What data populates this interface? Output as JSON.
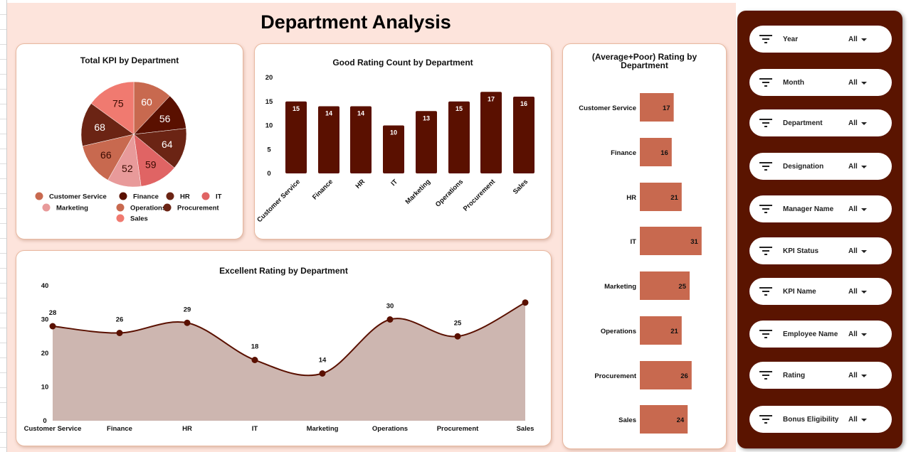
{
  "title": "Department Analysis",
  "colors": {
    "dark": "#5a1000",
    "sidebar": "#5a1400",
    "hbar": "#c8694f",
    "area": "#cdb6b0",
    "line": "#5a1000"
  },
  "filters": [
    {
      "label": "Year",
      "value": "All"
    },
    {
      "label": "Month",
      "value": "All"
    },
    {
      "label": "Department",
      "value": "All"
    },
    {
      "label": "Designation",
      "value": "All"
    },
    {
      "label": "Manager Name",
      "value": "All"
    },
    {
      "label": "KPI Status",
      "value": "All"
    },
    {
      "label": "KPI Name",
      "value": "All"
    },
    {
      "label": "Employee Name",
      "value": "All"
    },
    {
      "label": "Rating",
      "value": "All"
    },
    {
      "label": "Bonus Eligibility",
      "value": "All"
    }
  ],
  "chart_data": [
    {
      "type": "pie",
      "title": "Total KPI by Department",
      "categories": [
        "Customer Service",
        "Finance",
        "HR",
        "IT",
        "Marketing",
        "Operations",
        "Procurement",
        "Sales"
      ],
      "values": [
        60,
        56,
        64,
        59,
        52,
        66,
        68,
        75
      ],
      "colors": [
        "#c8694f",
        "#5a1000",
        "#6b2414",
        "#e06464",
        "#e89a9a",
        "#c8694f",
        "#6b2414",
        "#f07a70"
      ],
      "legend": "bottom"
    },
    {
      "type": "bar",
      "title": "Good Rating Count by Department",
      "categories": [
        "Customer Service",
        "Finance",
        "HR",
        "IT",
        "Marketing",
        "Operations",
        "Procurement",
        "Sales"
      ],
      "values": [
        15,
        14,
        14,
        10,
        13,
        15,
        17,
        16
      ],
      "ylim": [
        0,
        20
      ],
      "yticks": [
        0,
        5,
        10,
        15,
        20
      ],
      "grid": false
    },
    {
      "type": "bar",
      "orientation": "horizontal",
      "title": "(Average+Poor) Rating by Department",
      "categories": [
        "Customer Service",
        "Finance",
        "HR",
        "IT",
        "Marketing",
        "Operations",
        "Procurement",
        "Sales"
      ],
      "values": [
        17,
        16,
        21,
        31,
        25,
        21,
        26,
        24
      ]
    },
    {
      "type": "area",
      "title": "Excellent Rating by Department",
      "categories": [
        "Customer Service",
        "Finance",
        "HR",
        "IT",
        "Marketing",
        "Operations",
        "Procurement",
        "Sales"
      ],
      "values": [
        28,
        26,
        29,
        18,
        14,
        30,
        25,
        35
      ],
      "labels": [
        "28",
        "26",
        "29",
        "18",
        "14",
        "30",
        "25",
        ""
      ],
      "ylim": [
        0,
        40
      ],
      "yticks": [
        0,
        10,
        20,
        30,
        40
      ],
      "smooth": true
    }
  ]
}
